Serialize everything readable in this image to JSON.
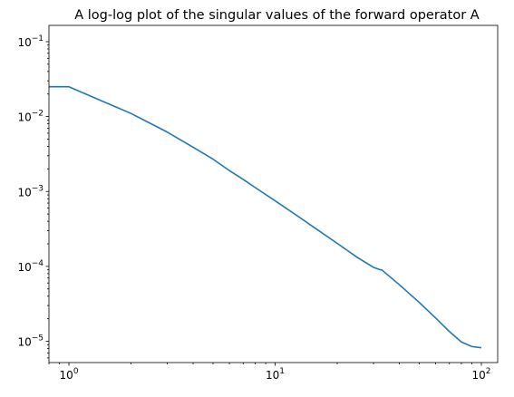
{
  "chart_data": {
    "type": "line",
    "title": "A log-log plot of the singular values of the forward operator A",
    "xlabel": "",
    "ylabel": "",
    "xscale": "log",
    "yscale": "log",
    "xlim": [
      0.8,
      120
    ],
    "ylim": [
      5.2e-06,
      0.165
    ],
    "grid": false,
    "line_color": "#1f77b4",
    "x_ticks": [
      {
        "value": 1,
        "base": "10",
        "exp": "0"
      },
      {
        "value": 10,
        "base": "10",
        "exp": "1"
      },
      {
        "value": 100,
        "base": "10",
        "exp": "2"
      }
    ],
    "y_ticks": [
      {
        "value": 1e-05,
        "base": "10",
        "exp": "−5"
      },
      {
        "value": 0.0001,
        "base": "10",
        "exp": "−4"
      },
      {
        "value": 0.001,
        "base": "10",
        "exp": "−3"
      },
      {
        "value": 0.01,
        "base": "10",
        "exp": "−2"
      },
      {
        "value": 0.1,
        "base": "10",
        "exp": "−1"
      }
    ],
    "series": [
      {
        "x": [
          0.8,
          1,
          2,
          3,
          4,
          5,
          6,
          7,
          8,
          10,
          13,
          16,
          20,
          25,
          30,
          32,
          33,
          40,
          50,
          60,
          70,
          80,
          90,
          100
        ],
        "values": [
          0.025,
          0.025,
          0.011,
          0.0062,
          0.0039,
          0.0027,
          0.0019,
          0.00145,
          0.00113,
          0.00075,
          0.00046,
          0.00031,
          0.000203,
          0.000132,
          9.7e-05,
          9.1e-05,
          8.9e-05,
          5.7e-05,
          3.3e-05,
          2.05e-05,
          1.35e-05,
          9.8e-06,
          8.5e-06,
          8.2e-06
        ]
      }
    ]
  }
}
